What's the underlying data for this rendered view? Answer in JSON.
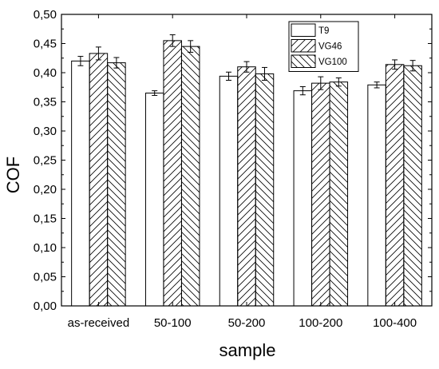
{
  "chart_data": {
    "type": "bar",
    "xlabel": "sample",
    "ylabel": "COF",
    "ylim": [
      0,
      0.5
    ],
    "yticks": [
      "0,00",
      "0,05",
      "0,10",
      "0,15",
      "0,20",
      "0,25",
      "0,30",
      "0,35",
      "0,40",
      "0,45",
      "0,50"
    ],
    "categories": [
      "as-received",
      "50-100",
      "50-200",
      "100-200",
      "100-400"
    ],
    "series": [
      {
        "name": "T9",
        "pattern": "none",
        "values": [
          0.42,
          0.365,
          0.394,
          0.369,
          0.379
        ],
        "errors": [
          0.008,
          0.004,
          0.007,
          0.007,
          0.005
        ]
      },
      {
        "name": "VG46",
        "pattern": "forward-hatch",
        "values": [
          0.433,
          0.455,
          0.41,
          0.382,
          0.414
        ],
        "errors": [
          0.011,
          0.01,
          0.009,
          0.011,
          0.008
        ]
      },
      {
        "name": "VG100",
        "pattern": "back-hatch",
        "values": [
          0.417,
          0.445,
          0.398,
          0.384,
          0.412
        ],
        "errors": [
          0.009,
          0.01,
          0.011,
          0.007,
          0.009
        ]
      }
    ],
    "legend_position": "top-right",
    "grid": false,
    "error_bars": true
  }
}
